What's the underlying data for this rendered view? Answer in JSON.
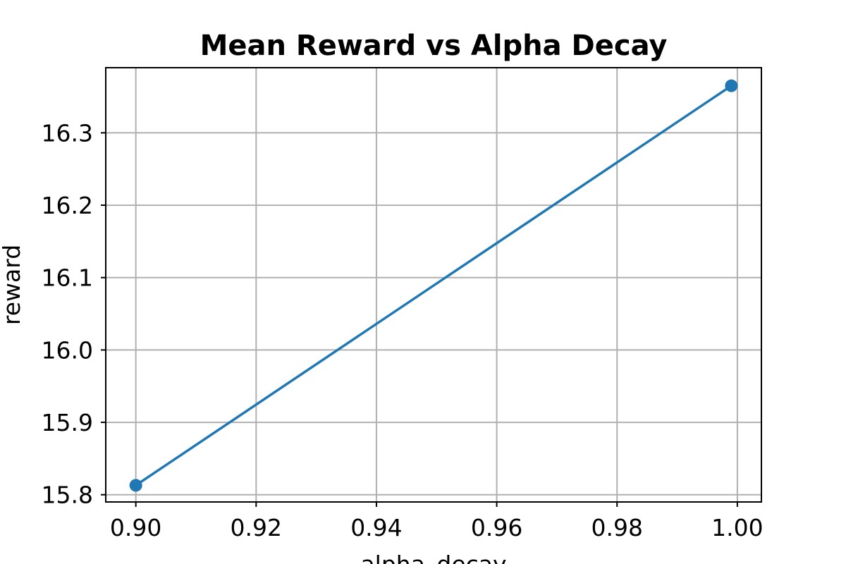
{
  "chart_data": {
    "type": "line",
    "title": "Mean Reward vs Alpha Decay",
    "xlabel": "alpha_decay",
    "ylabel": "reward",
    "xlim": [
      0.895,
      1.004
    ],
    "ylim": [
      15.79,
      16.39
    ],
    "x_ticks": [
      0.9,
      0.92,
      0.94,
      0.96,
      0.98,
      1.0
    ],
    "x_tick_labels": [
      "0.90",
      "0.92",
      "0.94",
      "0.96",
      "0.98",
      "1.00"
    ],
    "y_ticks": [
      15.8,
      15.9,
      16.0,
      16.1,
      16.2,
      16.3
    ],
    "y_tick_labels": [
      "15.8",
      "15.9",
      "16.0",
      "16.1",
      "16.2",
      "16.3"
    ],
    "grid": true,
    "legend": "none",
    "series": [
      {
        "x": [
          0.9,
          0.999
        ],
        "y": [
          15.813,
          16.365
        ],
        "color": "#1f77b4",
        "marker": "circle"
      }
    ]
  }
}
